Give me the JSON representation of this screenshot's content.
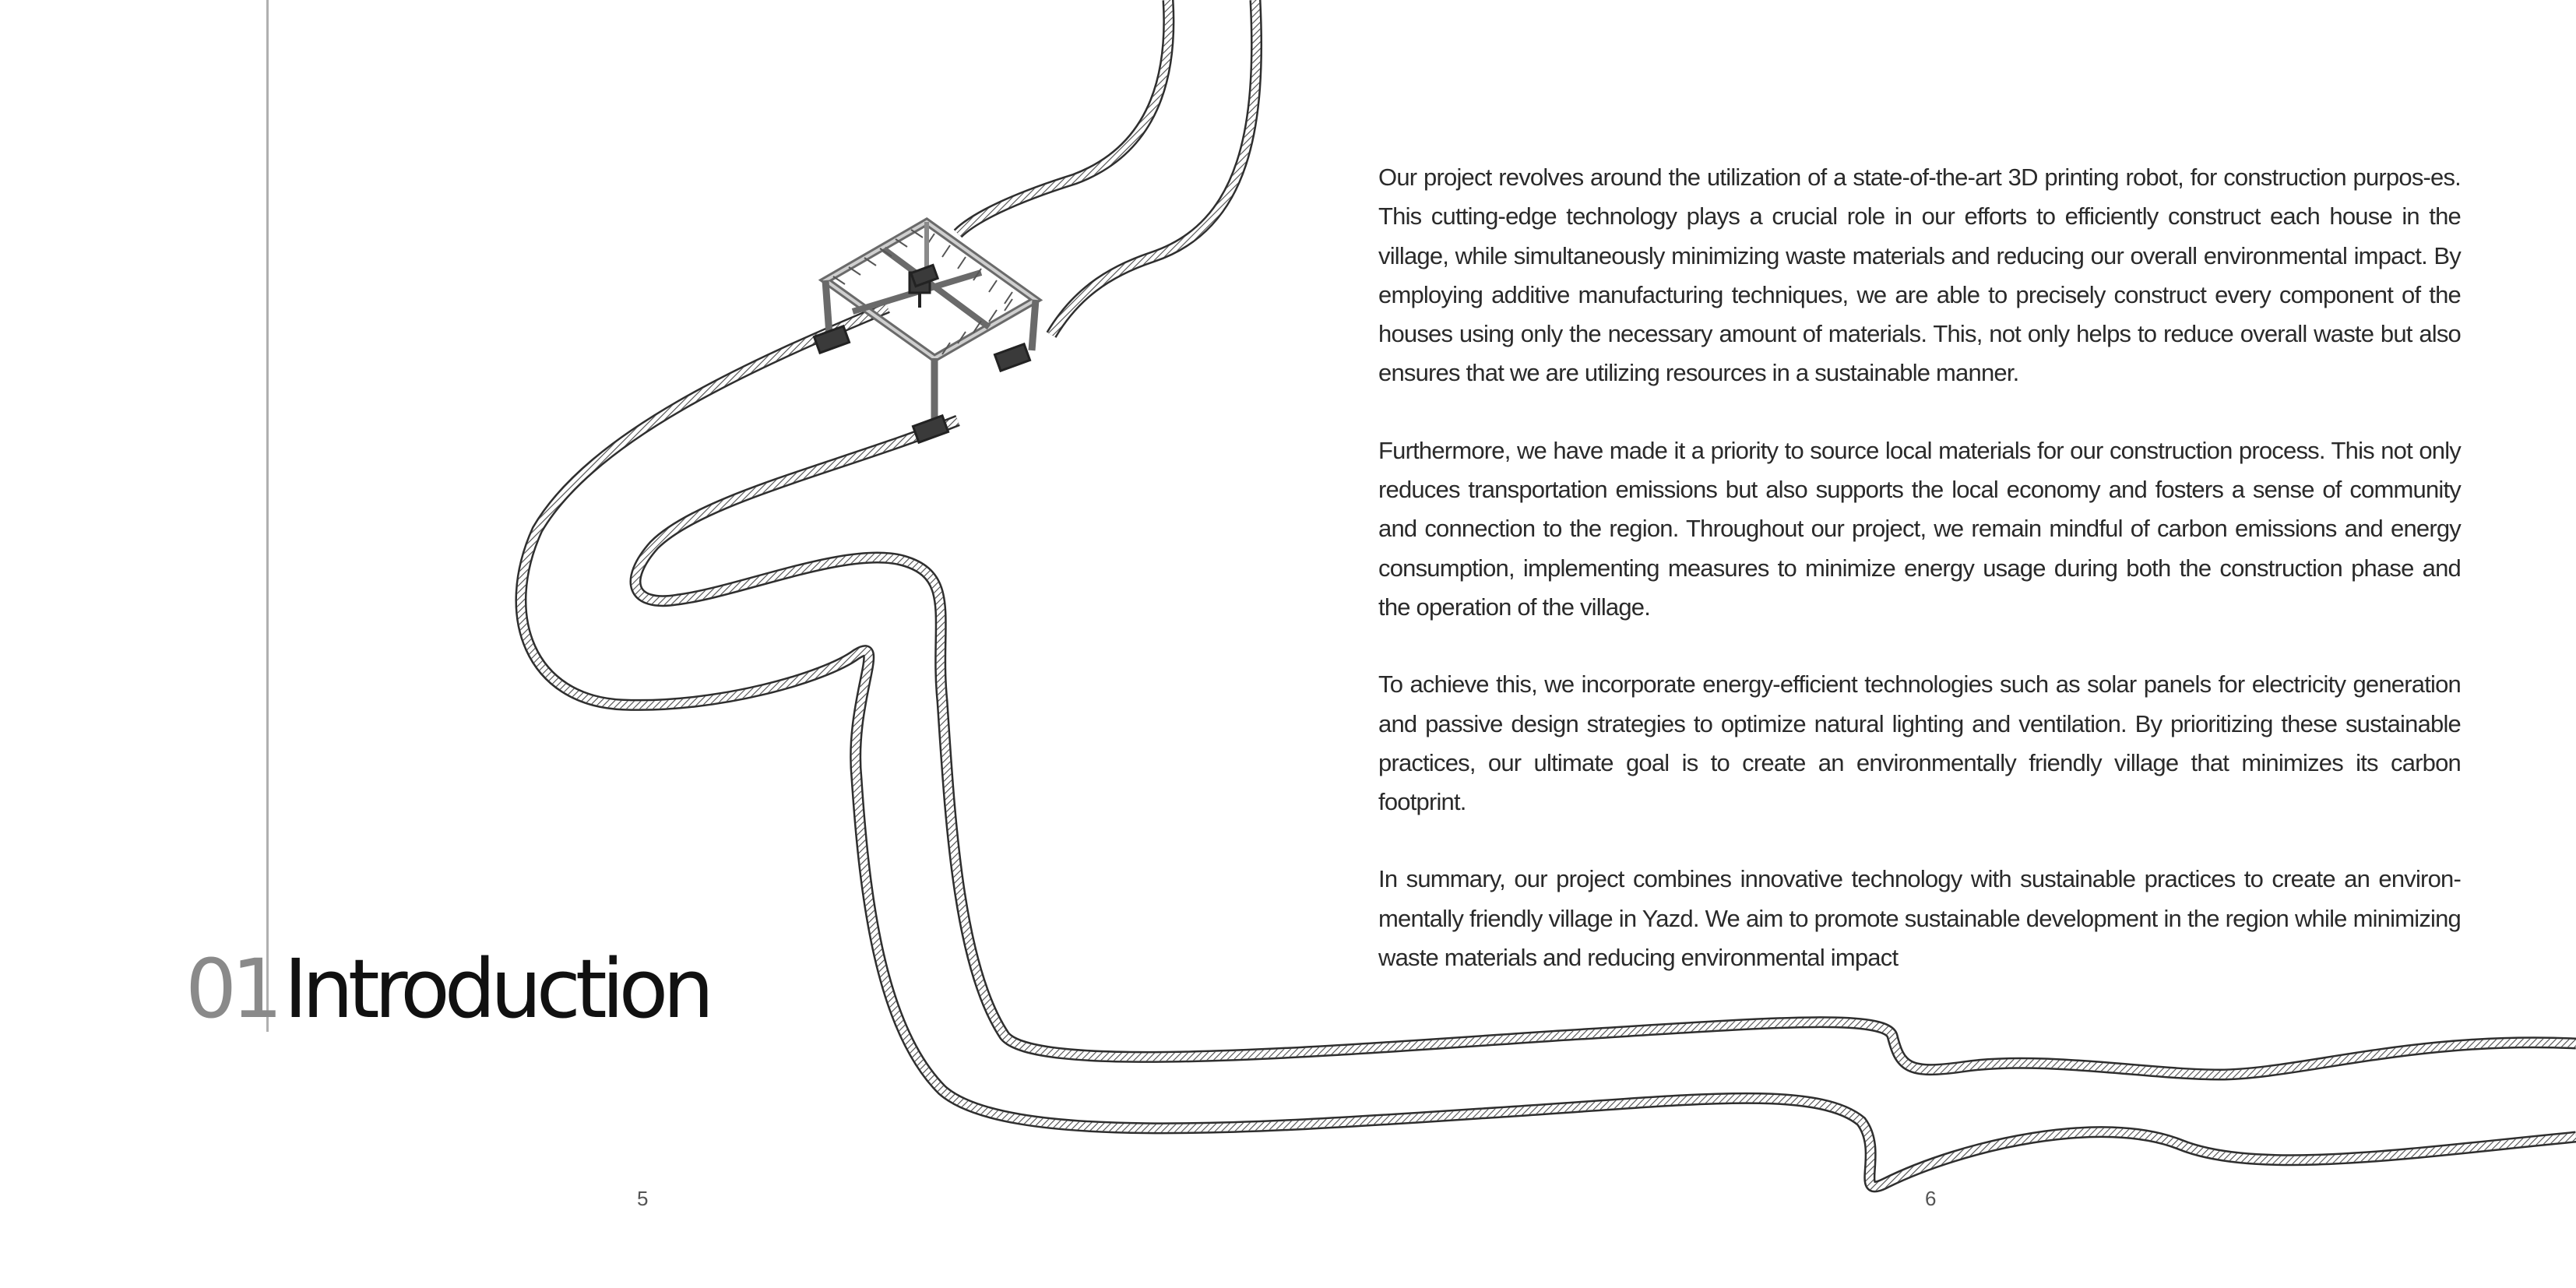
{
  "section": {
    "number": "01",
    "title": "Introduction"
  },
  "paragraphs": [
    "Our project revolves around the utilization of a state-of-the-art 3D printing robot, for construction purpos-es. This cutting-edge technology plays a crucial role in our efforts to efficiently construct each house in the village, while simultaneously minimizing waste materials and reducing our overall environmental impact. By employing additive manufacturing techniques, we are able to precisely construct every component of the houses using only the necessary amount of materials. This, not only helps to reduce overall waste but also ensures that we are utilizing resources in a sustainable manner.",
    "Furthermore, we have made it a priority to source local materials for our construction process. This not only reduces transportation emissions but also supports the local economy and fosters a sense of community and connection to the region. Throughout our project, we remain mindful of carbon emissions and energy consumption, implementing measures to minimize energy usage during both the construction phase and the operation of the village.",
    "To achieve this, we incorporate energy-efficient technologies such as solar panels for electricity generation and passive design strategies to optimize natural lighting and ventilation. By prioritizing these sustainable practices, our ultimate goal is to create an environmentally friendly village that minimizes its carbon footprint.",
    "In summary, our project combines innovative technology with sustainable practices to create an environ-mentally friendly village in Yazd. We aim to promote sustainable development in the region while minimizing waste materials and reducing environmental impact"
  ],
  "pages": {
    "left": "5",
    "right": "6"
  },
  "colors": {
    "divider": "#b0b0b0",
    "number": "#8a8a8a",
    "title": "#111111",
    "path": "#555555"
  }
}
